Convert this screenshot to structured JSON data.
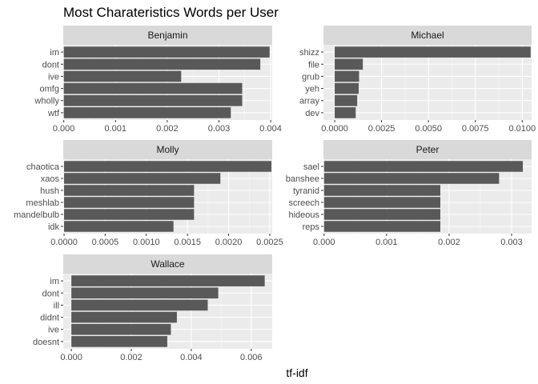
{
  "chart_data": {
    "type": "bar",
    "orientation": "horizontal",
    "title": "Most Charateristics Words per User",
    "xlabel": "tf-idf",
    "ylabel": "",
    "grid": true,
    "facets": [
      {
        "name": "Benjamin",
        "categories": [
          "im",
          "dont",
          "ive",
          "omfg",
          "wholly",
          "wtf"
        ],
        "values": [
          0.00398,
          0.0038,
          0.00227,
          0.00345,
          0.00345,
          0.00323
        ],
        "xlim": [
          -1e-05,
          0.00403
        ],
        "xticks": [
          0,
          0.001,
          0.002,
          0.003,
          0.004
        ],
        "xtick_labels": [
          "0.000",
          "0.001",
          "0.002",
          "0.003",
          "0.004"
        ]
      },
      {
        "name": "Michael",
        "categories": [
          "shizz",
          "file",
          "grub",
          "yeh",
          "array",
          "dev"
        ],
        "values": [
          0.01045,
          0.0015,
          0.0013,
          0.00128,
          0.0012,
          0.00112
        ],
        "xlim": [
          -0.0006,
          0.0105
        ],
        "xticks": [
          0,
          0.0025,
          0.005,
          0.0075,
          0.01
        ],
        "xtick_labels": [
          "0.0000",
          "0.0025",
          "0.0050",
          "0.0075",
          "0.0100"
        ]
      },
      {
        "name": "Molly",
        "categories": [
          "chaotica",
          "xaos",
          "hush",
          "meshlab",
          "mandelbulb",
          "idk"
        ],
        "values": [
          0.00252,
          0.0019,
          0.00158,
          0.00158,
          0.00158,
          0.00133
        ],
        "xlim": [
          -1e-05,
          0.00253
        ],
        "xticks": [
          0,
          0.0005,
          0.001,
          0.0015,
          0.002,
          0.0025
        ],
        "xtick_labels": [
          "0.0000",
          "0.0005",
          "0.0010",
          "0.0015",
          "0.0020",
          "0.0025"
        ]
      },
      {
        "name": "Peter",
        "categories": [
          "sael",
          "banshee",
          "tyranid",
          "screech",
          "hideous",
          "reps"
        ],
        "values": [
          0.00318,
          0.0028,
          0.00186,
          0.00186,
          0.00186,
          0.00186
        ],
        "xlim": [
          -1e-05,
          0.00332
        ],
        "xticks": [
          0,
          0.001,
          0.002,
          0.003
        ],
        "xtick_labels": [
          "0.000",
          "0.001",
          "0.002",
          "0.003"
        ]
      },
      {
        "name": "Wallace",
        "categories": [
          "im",
          "dont",
          "ill",
          "didnt",
          "ive",
          "doesnt"
        ],
        "values": [
          0.00645,
          0.0049,
          0.00455,
          0.00352,
          0.00332,
          0.0032
        ],
        "xlim": [
          -0.00027,
          0.0067
        ],
        "xticks": [
          0,
          0.002,
          0.004,
          0.006
        ],
        "xtick_labels": [
          "0.000",
          "0.002",
          "0.004",
          "0.006"
        ]
      }
    ],
    "colors": {
      "bar": "#595959",
      "panel_bg": "#ebebeb",
      "strip_bg": "#d9d9d9",
      "grid_major": "#ffffff"
    }
  }
}
